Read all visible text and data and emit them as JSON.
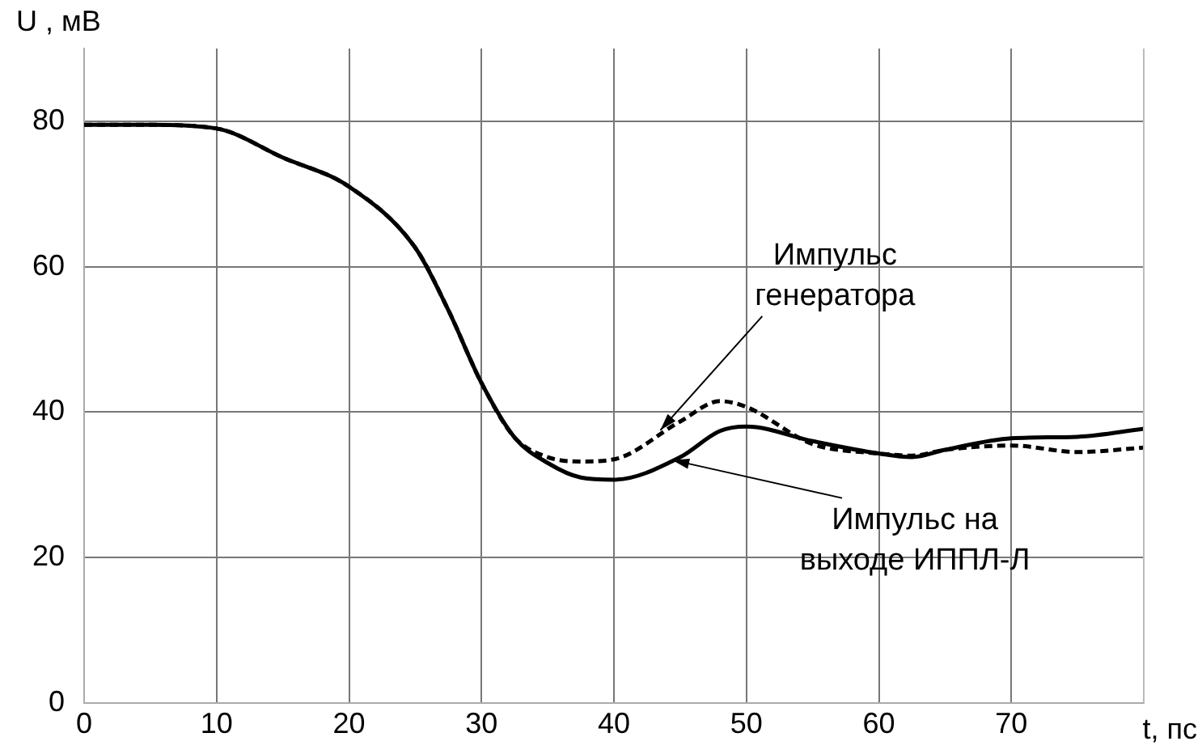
{
  "chart_data": {
    "type": "line",
    "xlabel": "t, пс",
    "ylabel": "U , мВ",
    "x": [
      0,
      5,
      10,
      15,
      20,
      25,
      27.5,
      30,
      32.5,
      35,
      37.5,
      40,
      45,
      48,
      50,
      55,
      60,
      62.5,
      65,
      70,
      75,
      80
    ],
    "series": [
      {
        "color": "#000000",
        "line_style": "solid",
        "values": [
          79.5,
          79.5,
          79,
          75,
          71,
          62.6,
          54,
          44,
          36.5,
          33,
          31,
          30.7,
          33.8,
          37.4,
          38,
          36,
          34.3,
          33.8,
          34.8,
          36.4,
          36.6,
          37.7
        ]
      },
      {
        "color": "#000000",
        "line_style": "dashed",
        "values": [
          79.5,
          79.5,
          79,
          75,
          71,
          62.6,
          54,
          44,
          36.5,
          33.8,
          33.2,
          33.5,
          38.7,
          41.5,
          40.7,
          35.6,
          34.3,
          34,
          34.8,
          35.4,
          34.5,
          35.1
        ]
      }
    ],
    "xlim": [
      0,
      80
    ],
    "xticks": [
      0,
      10,
      20,
      30,
      40,
      50,
      60,
      70
    ],
    "ylim": [
      0,
      90
    ],
    "yticks": [
      0,
      20,
      40,
      60,
      80
    ],
    "grid": true,
    "legend": false,
    "marker": "none",
    "annotations": [
      {
        "text": "Импульс\nгенератора",
        "x": 43.5,
        "y": 37.5
      },
      {
        "text": "Импульс на\nвыходе ИППЛ-Л",
        "x": 44.4,
        "y": 33.4
      }
    ]
  }
}
